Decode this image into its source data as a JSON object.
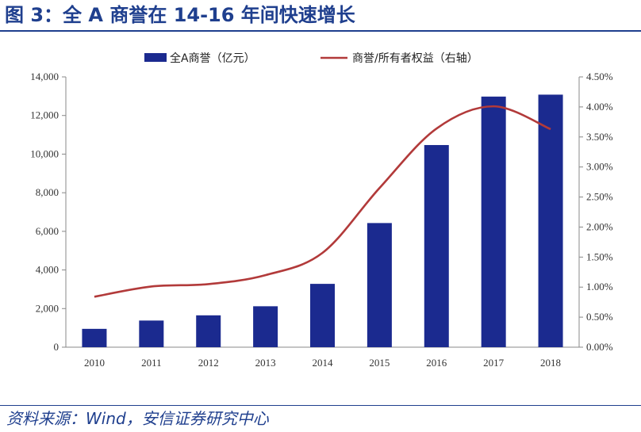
{
  "title": "图 3：全 A 商誉在 14-16 年间快速增长",
  "source": "资料来源：Wind，安信证券研究中心",
  "chart_data": {
    "type": "bar",
    "categories": [
      "2010",
      "2011",
      "2012",
      "2013",
      "2014",
      "2015",
      "2016",
      "2017",
      "2018"
    ],
    "series": [
      {
        "name": "全A商誉（亿元）",
        "type": "bar",
        "axis": "left",
        "color": "#1b2a8f",
        "values": [
          950,
          1380,
          1650,
          2120,
          3280,
          6430,
          10470,
          12980,
          13080
        ]
      },
      {
        "name": "商誉/所有者权益（右轴）",
        "type": "line",
        "axis": "right",
        "color": "#b23a3a",
        "values": [
          0.0084,
          0.0101,
          0.0105,
          0.012,
          0.0157,
          0.0265,
          0.0364,
          0.0401,
          0.0363
        ]
      }
    ],
    "y_left": {
      "min": 0,
      "max": 14000,
      "ticks": [
        0,
        2000,
        4000,
        6000,
        8000,
        10000,
        12000,
        14000
      ],
      "tick_labels": [
        "0",
        "2,000",
        "4,000",
        "6,000",
        "8,000",
        "10,000",
        "12,000",
        "14,000"
      ]
    },
    "y_right": {
      "min": 0,
      "max": 0.045,
      "ticks": [
        0,
        0.005,
        0.01,
        0.015,
        0.02,
        0.025,
        0.03,
        0.035,
        0.04,
        0.045
      ],
      "tick_labels": [
        "0.00%",
        "0.50%",
        "1.00%",
        "1.50%",
        "2.00%",
        "2.50%",
        "3.00%",
        "3.50%",
        "4.00%",
        "4.50%"
      ]
    },
    "grid": false,
    "legend_position": "top-center"
  }
}
